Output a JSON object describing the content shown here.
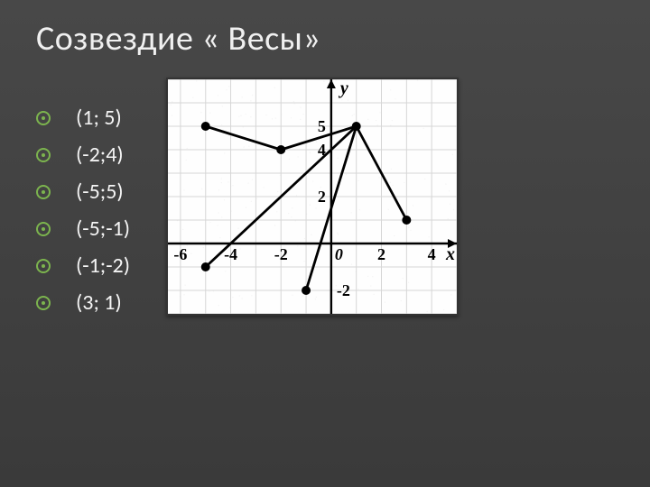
{
  "title": "Созвездие « Весы»",
  "coords": [
    "(1; 5)",
    "(-2;4)",
    "(-5;5)",
    "(-5;-1)",
    "(-1;-2)",
    "(3; 1)"
  ],
  "chart": {
    "type": "line",
    "background_color": "#fefefe",
    "grid_color": "#d6d6d6",
    "axis_color": "#000000",
    "line_color": "#000000",
    "line_width": 2.8,
    "point_color": "#000000",
    "point_radius": 5,
    "label_fontsize": 18,
    "label_fontweight": "bold",
    "label_fontfamily": "Times New Roman, serif",
    "label_color": "#000000",
    "noise_opacity": 0.04,
    "xlim": [
      -6.5,
      5
    ],
    "ylim": [
      -3,
      7
    ],
    "x_ticks_label": [
      {
        "v": -6,
        "text": "-6"
      },
      {
        "v": -4,
        "text": "-4"
      },
      {
        "v": -2,
        "text": "-2"
      },
      {
        "v": 0,
        "text": "0"
      },
      {
        "v": 2,
        "text": "2"
      },
      {
        "v": 4,
        "text": "4"
      }
    ],
    "y_ticks_label": [
      {
        "v": 5,
        "text": "5"
      },
      {
        "v": 4,
        "text": "4"
      },
      {
        "v": 2,
        "text": "2"
      },
      {
        "v": -2,
        "text": "-2"
      }
    ],
    "axis_labels": {
      "x": "x",
      "y": "y"
    },
    "star_points": [
      {
        "x": 1,
        "y": 5
      },
      {
        "x": -2,
        "y": 4
      },
      {
        "x": -5,
        "y": 5
      },
      {
        "x": -5,
        "y": -1
      },
      {
        "x": -1,
        "y": -2
      },
      {
        "x": 3,
        "y": 1
      }
    ],
    "star_edges": [
      [
        2,
        1
      ],
      [
        1,
        0
      ],
      [
        3,
        0
      ],
      [
        4,
        0
      ],
      [
        0,
        5
      ]
    ]
  }
}
